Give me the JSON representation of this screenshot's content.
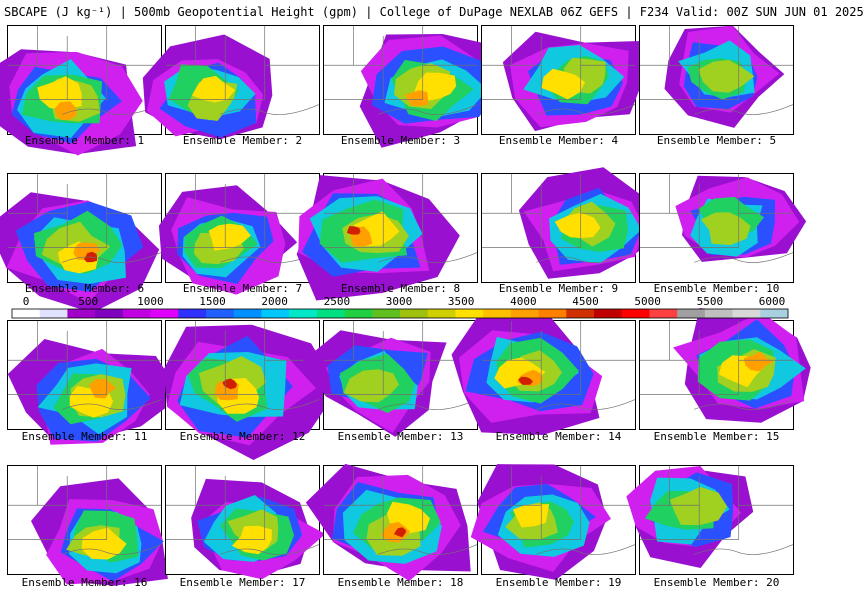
{
  "header": {
    "title": "SBCAPE (J kg⁻¹) | 500mb Geopotential Height (gpm) | College of DuPage NEXLAB 06Z GEFS | F234 Valid: 00Z SUN JUN 01 2025"
  },
  "colorbar": {
    "labels": [
      "0",
      "500",
      "1000",
      "1500",
      "2000",
      "2500",
      "3000",
      "3500",
      "4000",
      "4500",
      "5000",
      "5500",
      "6000"
    ],
    "colors": [
      "#ffffff",
      "#e0e0ff",
      "#a000c8",
      "#8000c0",
      "#c000e0",
      "#e000ff",
      "#3030ff",
      "#2060ff",
      "#0090ff",
      "#00c8ff",
      "#00e8c8",
      "#00e080",
      "#20d040",
      "#60c020",
      "#a0c010",
      "#d0d000",
      "#ffe000",
      "#ffc000",
      "#ffa000",
      "#ff8000",
      "#d03000",
      "#c00000",
      "#ff0000",
      "#ff4040",
      "#a0a0a0",
      "#c0c0c0",
      "#d8d8d8",
      "#a8d0e0"
    ],
    "colors_note": "swatches in order from 0 to 6000"
  },
  "members": [
    {
      "label": "Ensemble Member: 1",
      "intensity": 0.75
    },
    {
      "label": "Ensemble Member: 2",
      "intensity": 0.55
    },
    {
      "label": "Ensemble Member: 3",
      "intensity": 0.75
    },
    {
      "label": "Ensemble Member: 4",
      "intensity": 0.55
    },
    {
      "label": "Ensemble Member: 5",
      "intensity": 0.35
    },
    {
      "label": "Ensemble Member: 6",
      "intensity": 0.85
    },
    {
      "label": "Ensemble Member: 7",
      "intensity": 0.55
    },
    {
      "label": "Ensemble Member: 8",
      "intensity": 0.95
    },
    {
      "label": "Ensemble Member: 9",
      "intensity": 0.55
    },
    {
      "label": "Ensemble Member: 10",
      "intensity": 0.3
    },
    {
      "label": "Ensemble Member: 11",
      "intensity": 0.75
    },
    {
      "label": "Ensemble Member: 12",
      "intensity": 0.95
    },
    {
      "label": "Ensemble Member: 13",
      "intensity": 0.5
    },
    {
      "label": "Ensemble Member: 14",
      "intensity": 0.85
    },
    {
      "label": "Ensemble Member: 15",
      "intensity": 0.8
    },
    {
      "label": "Ensemble Member: 16",
      "intensity": 0.55
    },
    {
      "label": "Ensemble Member: 17",
      "intensity": 0.55
    },
    {
      "label": "Ensemble Member: 18",
      "intensity": 0.85
    },
    {
      "label": "Ensemble Member: 19",
      "intensity": 0.55
    },
    {
      "label": "Ensemble Member: 20",
      "intensity": 0.5
    }
  ],
  "palette": {
    "purple": "#9a10d0",
    "magenta": "#d020f0",
    "blue": "#2a50ff",
    "cyan": "#10c8e0",
    "green": "#20d060",
    "lime": "#a0d020",
    "yellow": "#ffe000",
    "orange": "#ffa000",
    "red": "#d02000",
    "gray": "#b0b0b0",
    "border": "#000000",
    "map_lines": "#707070"
  }
}
